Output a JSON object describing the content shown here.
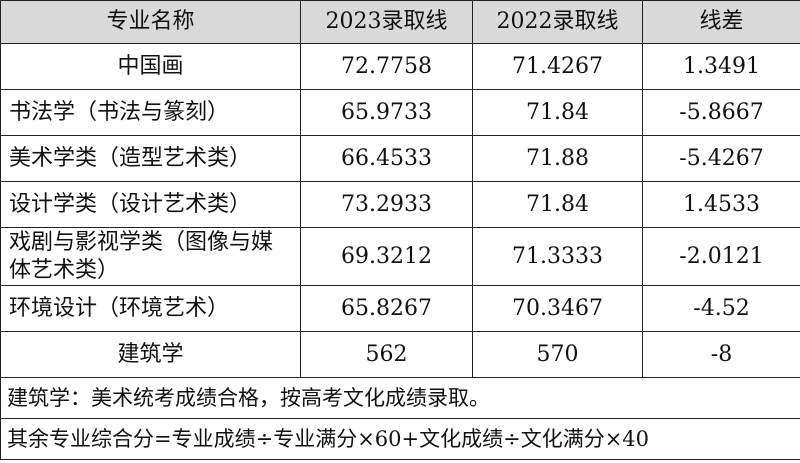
{
  "table": {
    "headers": [
      "专业名称",
      "2023录取线",
      "2022录取线",
      "线差"
    ],
    "rows": [
      [
        "中国画",
        "72.7758",
        "71.4267",
        "1.3491"
      ],
      [
        "书法学（书法与篆刻）",
        "65.9733",
        "71.84",
        "-5.8667"
      ],
      [
        "美术学类（造型艺术类）",
        "66.4533",
        "71.88",
        "-5.4267"
      ],
      [
        "设计学类（设计艺术类）",
        "73.2933",
        "71.84",
        "1.4533"
      ],
      [
        "戏剧与影视学类（图像与媒体艺术类）",
        "69.3212",
        "71.3333",
        "-2.0121"
      ],
      [
        "环境设计（环境艺术）",
        "65.8267",
        "70.3467",
        "-4.52"
      ],
      [
        "建筑学",
        "562",
        "570",
        "-8"
      ]
    ],
    "notes": [
      "建筑学：美术统考成绩合格，按高考文化成绩录取。",
      "其余专业综合分=专业成绩÷专业满分×60+文化成绩÷文化满分×40"
    ]
  }
}
